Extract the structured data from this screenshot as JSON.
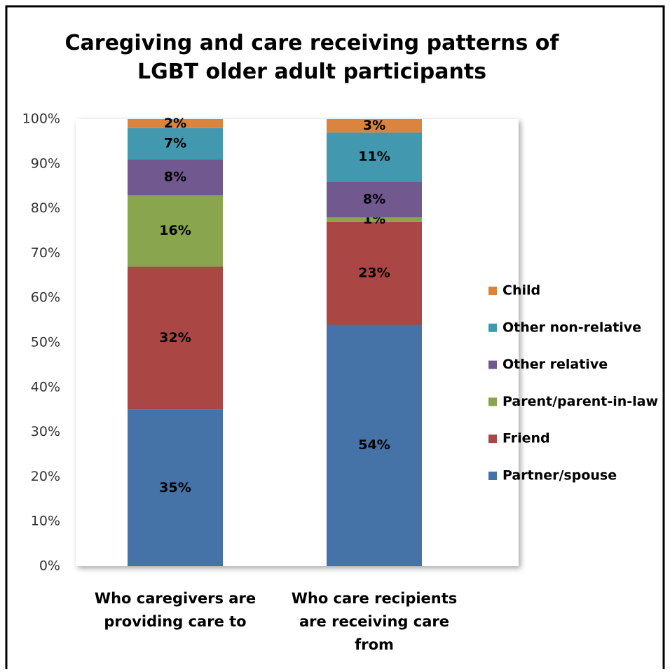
{
  "chart_data": {
    "type": "stacked_bar",
    "title": "Caregiving and care receiving patterns of LGBT older adult participants",
    "categories": [
      "Who caregivers are providing care to",
      "Who care recipients are receiving care from"
    ],
    "series": [
      {
        "name": "Partner/spouse",
        "color": "#4572a7",
        "values": [
          35,
          54
        ],
        "value_labels": [
          "35%",
          "54%"
        ]
      },
      {
        "name": "Friend",
        "color": "#aa4643",
        "values": [
          32,
          23
        ],
        "value_labels": [
          "32%",
          "23%"
        ]
      },
      {
        "name": "Parent/parent-in-law",
        "color": "#89a54e",
        "values": [
          16,
          1
        ],
        "value_labels": [
          "16%",
          "1%"
        ]
      },
      {
        "name": "Other relative",
        "color": "#71588f",
        "values": [
          8,
          8
        ],
        "value_labels": [
          "8%",
          "8%"
        ]
      },
      {
        "name": "Other non-relative",
        "color": "#4198af",
        "values": [
          7,
          11
        ],
        "value_labels": [
          "7%",
          "11%"
        ]
      },
      {
        "name": "Child",
        "color": "#db843d",
        "values": [
          2,
          3
        ],
        "value_labels": [
          "2%",
          "3%"
        ]
      }
    ],
    "ylim": [
      0,
      100
    ],
    "yticks": [
      {
        "value": 0,
        "label": "0%"
      },
      {
        "value": 10,
        "label": "10%"
      },
      {
        "value": 20,
        "label": "20%"
      },
      {
        "value": 30,
        "label": "30%"
      },
      {
        "value": 40,
        "label": "40%"
      },
      {
        "value": 50,
        "label": "50%"
      },
      {
        "value": 60,
        "label": "60%"
      },
      {
        "value": 70,
        "label": "70%"
      },
      {
        "value": 80,
        "label": "80%"
      },
      {
        "value": 90,
        "label": "90%"
      },
      {
        "value": 100,
        "label": "100%"
      }
    ],
    "legend": "right"
  }
}
